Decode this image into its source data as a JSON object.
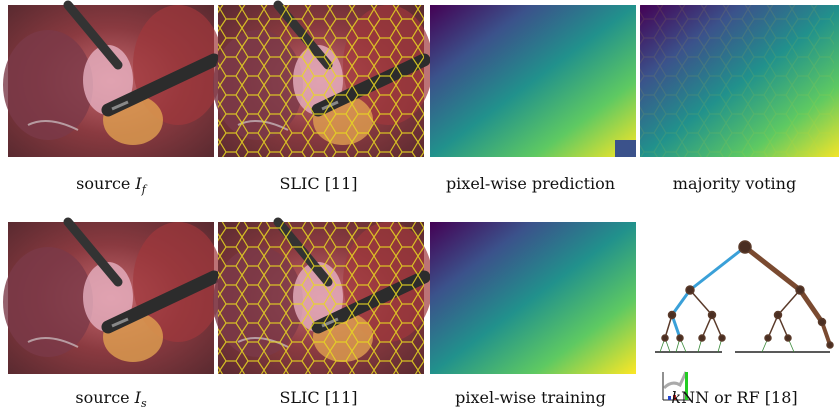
{
  "panels": [
    {
      "caption": [
        {
          "text": "source",
          "style": "roman"
        },
        {
          "text": "I",
          "style": "italic"
        },
        {
          "text": "f",
          "style": "sub"
        }
      ]
    },
    {
      "caption": [
        {
          "text": "SLIC [11]",
          "style": "roman"
        }
      ]
    },
    {
      "caption": [
        {
          "text": "pixel-wise prediction",
          "style": "roman"
        }
      ]
    },
    {
      "caption": [
        {
          "text": "majority voting",
          "style": "roman"
        }
      ]
    },
    {
      "caption": [
        {
          "text": "source",
          "style": "roman"
        },
        {
          "text": "I",
          "style": "italic"
        },
        {
          "text": "s",
          "style": "sub"
        }
      ]
    },
    {
      "caption": [
        {
          "text": "SLIC [11]",
          "style": "roman"
        }
      ]
    },
    {
      "caption": [
        {
          "text": "pixel-wise training",
          "style": "roman"
        }
      ]
    },
    {
      "caption": [
        {
          "text": "k",
          "style": "italic"
        },
        {
          "text": "NN or RF [18]",
          "style": "roman"
        }
      ]
    }
  ]
}
